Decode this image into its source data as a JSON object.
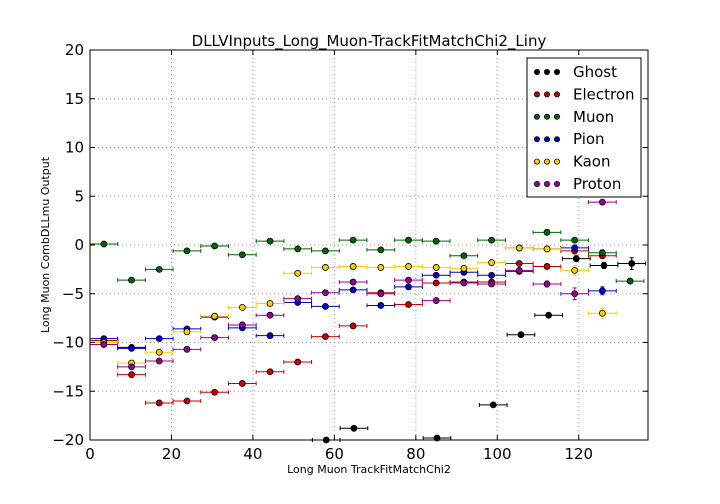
{
  "chart_data": {
    "type": "scatter",
    "title": "DLLVInputs_Long_Muon-TrackFitMatchChi2_Liny",
    "xlabel": "Long Muon TrackFitMatchChi2",
    "ylabel": "Long Muon CombDLLmu Output",
    "xlim": [
      0,
      137
    ],
    "ylim": [
      -20,
      20
    ],
    "x_ticks": [
      "0",
      "20",
      "40",
      "60",
      "80",
      "100",
      "120"
    ],
    "y_ticks": [
      "−20",
      "−15",
      "−10",
      "−5",
      "0",
      "5",
      "10",
      "15",
      "20"
    ],
    "x_tick_values": [
      0,
      20,
      40,
      60,
      80,
      100,
      120
    ],
    "y_tick_values": [
      -20,
      -15,
      -10,
      -5,
      0,
      5,
      10,
      15,
      20
    ],
    "grid": true,
    "legend_position": "top-right",
    "bin_half_width": 3.4,
    "series": [
      {
        "name": "Ghost",
        "color": "#000000",
        "points": [
          {
            "x": 3.4,
            "y": -9.8,
            "err": 0.2
          },
          {
            "x": 10.2,
            "y": -10.5,
            "err": 0.15
          },
          {
            "x": 58.0,
            "y": -20.0,
            "err": 0.1
          },
          {
            "x": 64.8,
            "y": -18.8,
            "err": 0.1
          },
          {
            "x": 85.2,
            "y": -19.8,
            "err": 0.1
          },
          {
            "x": 99.0,
            "y": -16.4,
            "err": 0.1
          },
          {
            "x": 105.8,
            "y": -9.2,
            "err": 0.1
          },
          {
            "x": 112.6,
            "y": -7.2,
            "err": 0.15
          },
          {
            "x": 119.4,
            "y": -1.4,
            "err": 0.3
          },
          {
            "x": 126.2,
            "y": -2.1,
            "err": 0.3
          },
          {
            "x": 133.0,
            "y": -1.9,
            "err": 0.6
          }
        ]
      },
      {
        "name": "Electron",
        "color": "#cc0000",
        "points": [
          {
            "x": 3.4,
            "y": -9.8,
            "err": 0.15
          },
          {
            "x": 10.2,
            "y": -13.3,
            "err": 0.15
          },
          {
            "x": 17.0,
            "y": -16.2,
            "err": 0.15
          },
          {
            "x": 23.8,
            "y": -16.0,
            "err": 0.15
          },
          {
            "x": 30.6,
            "y": -15.1,
            "err": 0.15
          },
          {
            "x": 37.4,
            "y": -14.2,
            "err": 0.15
          },
          {
            "x": 44.2,
            "y": -13.0,
            "err": 0.15
          },
          {
            "x": 51.0,
            "y": -12.0,
            "err": 0.15
          },
          {
            "x": 57.8,
            "y": -9.4,
            "err": 0.15
          },
          {
            "x": 64.6,
            "y": -8.3,
            "err": 0.15
          },
          {
            "x": 71.4,
            "y": -4.9,
            "err": 0.15
          },
          {
            "x": 78.2,
            "y": -6.1,
            "err": 0.15
          },
          {
            "x": 85.0,
            "y": -3.9,
            "err": 0.15
          },
          {
            "x": 91.8,
            "y": -3.8,
            "err": 0.15
          },
          {
            "x": 98.6,
            "y": -3.8,
            "err": 0.2
          },
          {
            "x": 105.4,
            "y": -1.9,
            "err": 0.2
          },
          {
            "x": 112.2,
            "y": -2.2,
            "err": 0.2
          },
          {
            "x": 119.0,
            "y": -0.6,
            "err": 0.3
          },
          {
            "x": 125.8,
            "y": -1.1,
            "err": 0.3
          }
        ]
      },
      {
        "name": "Muon",
        "color": "#006600",
        "points": [
          {
            "x": 3.4,
            "y": 0.1,
            "err": 0.1
          },
          {
            "x": 10.2,
            "y": -3.6,
            "err": 0.15
          },
          {
            "x": 17.0,
            "y": -2.5,
            "err": 0.15
          },
          {
            "x": 23.8,
            "y": -0.6,
            "err": 0.15
          },
          {
            "x": 30.6,
            "y": -0.1,
            "err": 0.15
          },
          {
            "x": 37.4,
            "y": -1.0,
            "err": 0.15
          },
          {
            "x": 44.2,
            "y": 0.4,
            "err": 0.15
          },
          {
            "x": 51.0,
            "y": -0.4,
            "err": 0.15
          },
          {
            "x": 57.8,
            "y": -0.6,
            "err": 0.15
          },
          {
            "x": 64.6,
            "y": 0.5,
            "err": 0.15
          },
          {
            "x": 71.4,
            "y": -0.5,
            "err": 0.15
          },
          {
            "x": 78.2,
            "y": 0.5,
            "err": 0.15
          },
          {
            "x": 85.0,
            "y": 0.4,
            "err": 0.15
          },
          {
            "x": 91.8,
            "y": -1.1,
            "err": 0.15
          },
          {
            "x": 98.6,
            "y": 0.5,
            "err": 0.2
          },
          {
            "x": 105.4,
            "y": -0.3,
            "err": 0.2
          },
          {
            "x": 112.2,
            "y": 1.3,
            "err": 0.2
          },
          {
            "x": 119.0,
            "y": 0.5,
            "err": 0.2
          },
          {
            "x": 125.8,
            "y": -0.8,
            "err": 0.3
          },
          {
            "x": 132.6,
            "y": -3.7,
            "err": 0.2
          }
        ]
      },
      {
        "name": "Pion",
        "color": "#0000cc",
        "points": [
          {
            "x": 3.4,
            "y": -9.6,
            "err": 0.15
          },
          {
            "x": 10.2,
            "y": -10.6,
            "err": 0.15
          },
          {
            "x": 17.0,
            "y": -9.6,
            "err": 0.15
          },
          {
            "x": 23.8,
            "y": -8.6,
            "err": 0.15
          },
          {
            "x": 30.6,
            "y": -7.4,
            "err": 0.15
          },
          {
            "x": 37.4,
            "y": -8.5,
            "err": 0.15
          },
          {
            "x": 44.2,
            "y": -9.3,
            "err": 0.15
          },
          {
            "x": 51.0,
            "y": -5.9,
            "err": 0.15
          },
          {
            "x": 57.8,
            "y": -6.3,
            "err": 0.15
          },
          {
            "x": 64.6,
            "y": -4.6,
            "err": 0.15
          },
          {
            "x": 71.4,
            "y": -6.2,
            "err": 0.15
          },
          {
            "x": 78.2,
            "y": -4.3,
            "err": 0.15
          },
          {
            "x": 85.0,
            "y": -3.1,
            "err": 0.15
          },
          {
            "x": 91.8,
            "y": -2.8,
            "err": 0.15
          },
          {
            "x": 98.6,
            "y": -3.1,
            "err": 0.2
          },
          {
            "x": 105.4,
            "y": -2.7,
            "err": 0.2
          },
          {
            "x": 112.2,
            "y": -0.4,
            "err": 0.3
          },
          {
            "x": 119.0,
            "y": -0.3,
            "err": 0.3
          },
          {
            "x": 125.8,
            "y": -4.7,
            "err": 0.4
          }
        ]
      },
      {
        "name": "Kaon",
        "color": "#ffcc00",
        "points": [
          {
            "x": 3.4,
            "y": -10.0,
            "err": 0.15
          },
          {
            "x": 10.2,
            "y": -12.1,
            "err": 0.15
          },
          {
            "x": 17.0,
            "y": -11.0,
            "err": 0.15
          },
          {
            "x": 23.8,
            "y": -8.9,
            "err": 0.15
          },
          {
            "x": 30.6,
            "y": -7.3,
            "err": 0.15
          },
          {
            "x": 37.4,
            "y": -6.4,
            "err": 0.15
          },
          {
            "x": 44.2,
            "y": -6.0,
            "err": 0.15
          },
          {
            "x": 51.0,
            "y": -2.9,
            "err": 0.15
          },
          {
            "x": 57.8,
            "y": -2.3,
            "err": 0.15
          },
          {
            "x": 64.6,
            "y": -2.2,
            "err": 0.15
          },
          {
            "x": 71.4,
            "y": -2.3,
            "err": 0.15
          },
          {
            "x": 78.2,
            "y": -2.2,
            "err": 0.15
          },
          {
            "x": 85.0,
            "y": -2.3,
            "err": 0.15
          },
          {
            "x": 91.8,
            "y": -2.4,
            "err": 0.2
          },
          {
            "x": 98.6,
            "y": -1.8,
            "err": 0.2
          },
          {
            "x": 105.4,
            "y": -0.3,
            "err": 0.2
          },
          {
            "x": 112.2,
            "y": -0.4,
            "err": 0.3
          },
          {
            "x": 119.0,
            "y": -2.6,
            "err": 0.5
          },
          {
            "x": 125.8,
            "y": -7.0,
            "err": 0.5
          }
        ]
      },
      {
        "name": "Proton",
        "color": "#990099",
        "points": [
          {
            "x": 3.4,
            "y": -10.2,
            "err": 0.15
          },
          {
            "x": 10.2,
            "y": -12.5,
            "err": 0.15
          },
          {
            "x": 17.0,
            "y": -11.9,
            "err": 0.15
          },
          {
            "x": 23.8,
            "y": -10.7,
            "err": 0.15
          },
          {
            "x": 30.6,
            "y": -9.5,
            "err": 0.15
          },
          {
            "x": 37.4,
            "y": -8.2,
            "err": 0.15
          },
          {
            "x": 44.2,
            "y": -7.2,
            "err": 0.15
          },
          {
            "x": 51.0,
            "y": -5.5,
            "err": 0.15
          },
          {
            "x": 57.8,
            "y": -4.9,
            "err": 0.15
          },
          {
            "x": 64.6,
            "y": -3.8,
            "err": 0.15
          },
          {
            "x": 71.4,
            "y": -5.0,
            "err": 0.15
          },
          {
            "x": 78.2,
            "y": -3.6,
            "err": 0.15
          },
          {
            "x": 85.0,
            "y": -5.7,
            "err": 0.15
          },
          {
            "x": 91.8,
            "y": -3.9,
            "err": 0.15
          },
          {
            "x": 98.6,
            "y": -4.0,
            "err": 0.2
          },
          {
            "x": 105.4,
            "y": -2.6,
            "err": 0.2
          },
          {
            "x": 112.2,
            "y": -4.0,
            "err": 0.3
          },
          {
            "x": 119.0,
            "y": -5.0,
            "err": 0.6
          },
          {
            "x": 125.8,
            "y": 4.4,
            "err": 0.2
          }
        ]
      }
    ]
  }
}
